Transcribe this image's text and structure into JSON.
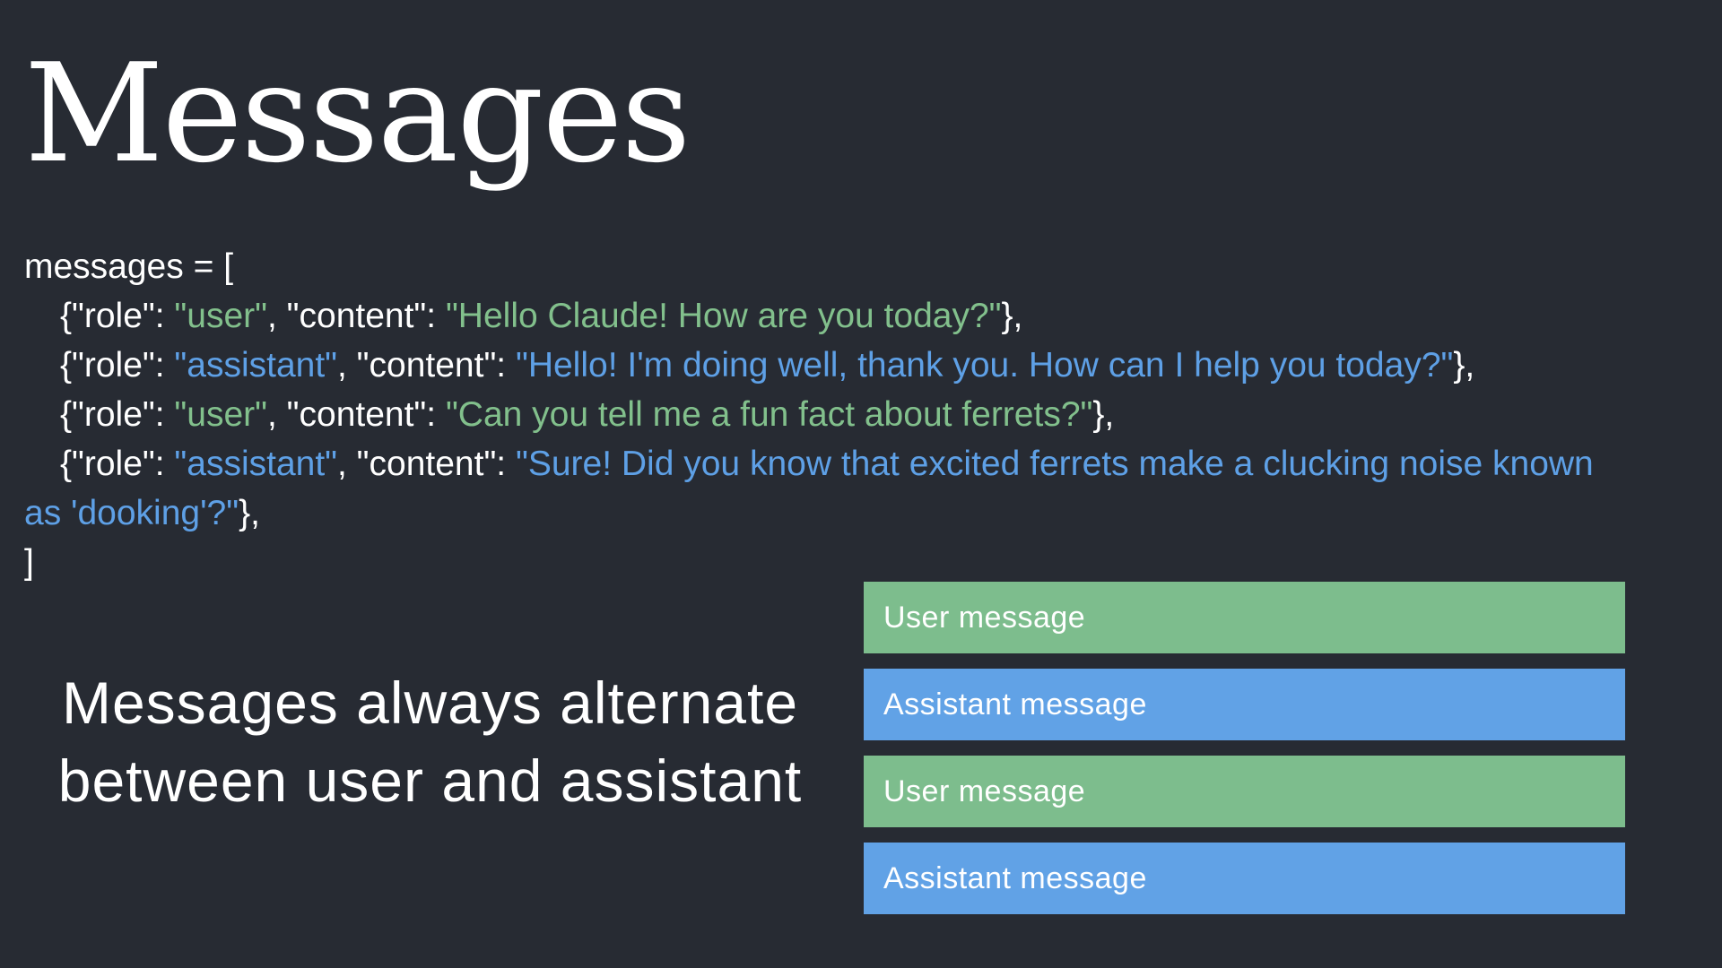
{
  "title": "Messages",
  "colors": {
    "background": "#272b33",
    "user_string": "#82c08c",
    "assistant_string": "#5ea0e6",
    "user_bar": "#7dbd8d",
    "assistant_bar": "#61a2e6"
  },
  "code": {
    "open": "messages = [",
    "close": "]",
    "lines": [
      {
        "prefix": "{\"role\": ",
        "role": "\"user\"",
        "middle": ", \"content\": ",
        "content": "\"Hello Claude! How are you today?\"",
        "suffix": "},"
      },
      {
        "prefix": "{\"role\": ",
        "role": "\"assistant\"",
        "middle": ", \"content\": ",
        "content": "\"Hello! I'm doing well, thank you. How can I help you today?\"",
        "suffix": "},"
      },
      {
        "prefix": "{\"role\": ",
        "role": "\"user\"",
        "middle": ", \"content\": ",
        "content": "\"Can you tell me a fun fact about ferrets?\"",
        "suffix": "},"
      },
      {
        "prefix": "{\"role\": ",
        "role": "\"assistant\"",
        "middle": ", \"content\": ",
        "content": "\"Sure! Did you know that excited ferrets make a clucking noise known as 'dooking'?\"",
        "suffix": "},"
      }
    ]
  },
  "caption": {
    "line1": "Messages always alternate",
    "line2": "between user and assistant"
  },
  "message_bars": [
    {
      "type": "user",
      "label": "User message"
    },
    {
      "type": "assistant",
      "label": "Assistant message"
    },
    {
      "type": "user",
      "label": "User message"
    },
    {
      "type": "assistant",
      "label": "Assistant message"
    }
  ]
}
